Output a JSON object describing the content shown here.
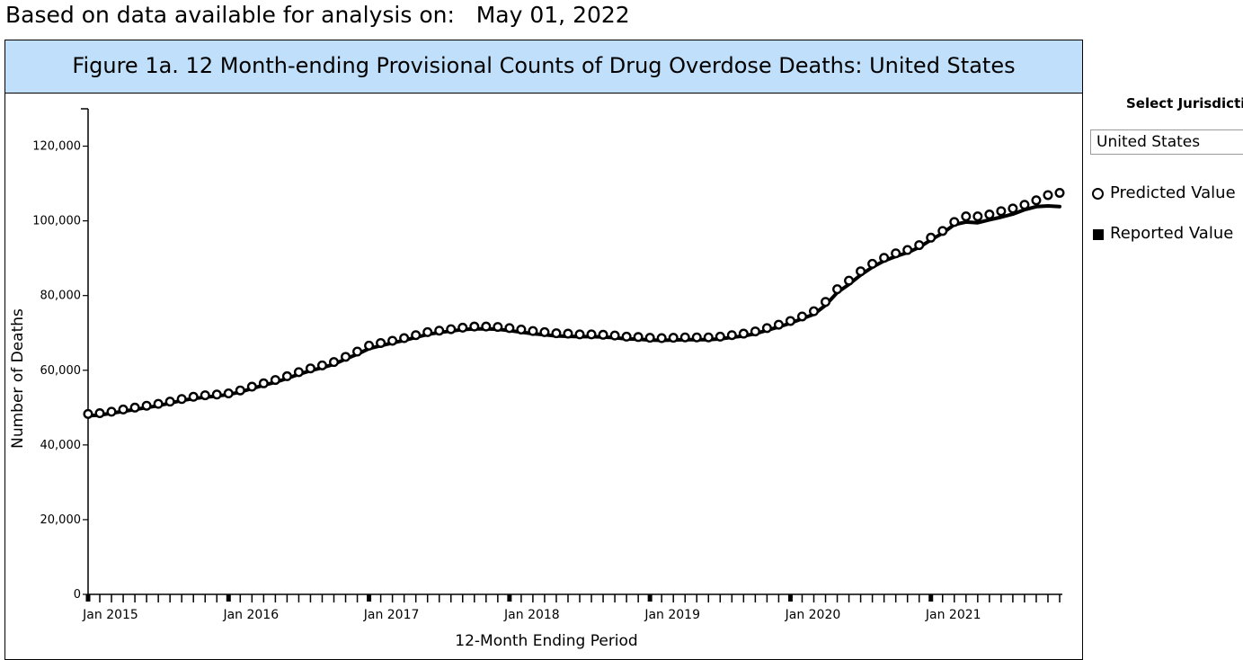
{
  "header": {
    "as_of_label": "Based on data available for analysis on:",
    "as_of_date": "May 01, 2022"
  },
  "figure": {
    "title": "Figure 1a. 12 Month-ending Provisional Counts of Drug Overdose Deaths: United States"
  },
  "controls": {
    "select_label": "Select Jurisdiction",
    "selected_jurisdiction": "United States"
  },
  "legend": {
    "predicted": "Predicted Value",
    "reported": "Reported Value"
  },
  "chart_data": {
    "type": "line",
    "xlabel": "12-Month Ending Period",
    "ylabel": "Number of Deaths",
    "ylim": [
      0,
      130000
    ],
    "yticks": [
      0,
      20000,
      40000,
      60000,
      80000,
      100000,
      120000
    ],
    "ytick_labels": [
      "0",
      "20,000",
      "40,000",
      "60,000",
      "80,000",
      "100,000",
      "120,000"
    ],
    "x_start": "2015-01",
    "x_end": "2021-12",
    "xticks": [
      "Jan 2015",
      "Jan 2016",
      "Jan 2017",
      "Jan 2018",
      "Jan 2019",
      "Jan 2020",
      "Jan 2021"
    ],
    "months": [
      "2015-01",
      "2015-02",
      "2015-03",
      "2015-04",
      "2015-05",
      "2015-06",
      "2015-07",
      "2015-08",
      "2015-09",
      "2015-10",
      "2015-11",
      "2015-12",
      "2016-01",
      "2016-02",
      "2016-03",
      "2016-04",
      "2016-05",
      "2016-06",
      "2016-07",
      "2016-08",
      "2016-09",
      "2016-10",
      "2016-11",
      "2016-12",
      "2017-01",
      "2017-02",
      "2017-03",
      "2017-04",
      "2017-05",
      "2017-06",
      "2017-07",
      "2017-08",
      "2017-09",
      "2017-10",
      "2017-11",
      "2017-12",
      "2018-01",
      "2018-02",
      "2018-03",
      "2018-04",
      "2018-05",
      "2018-06",
      "2018-07",
      "2018-08",
      "2018-09",
      "2018-10",
      "2018-11",
      "2018-12",
      "2019-01",
      "2019-02",
      "2019-03",
      "2019-04",
      "2019-05",
      "2019-06",
      "2019-07",
      "2019-08",
      "2019-09",
      "2019-10",
      "2019-11",
      "2019-12",
      "2020-01",
      "2020-02",
      "2020-03",
      "2020-04",
      "2020-05",
      "2020-06",
      "2020-07",
      "2020-08",
      "2020-09",
      "2020-10",
      "2020-11",
      "2020-12",
      "2021-01",
      "2021-02",
      "2021-03",
      "2021-04",
      "2021-05",
      "2021-06",
      "2021-07",
      "2021-08",
      "2021-09",
      "2021-10",
      "2021-11",
      "2021-12"
    ],
    "series": [
      {
        "name": "Predicted Value",
        "style": "hollow-circles",
        "values": [
          48300,
          48500,
          48900,
          49500,
          50000,
          50500,
          51000,
          51600,
          52300,
          52900,
          53300,
          53500,
          53800,
          54600,
          55600,
          56500,
          57400,
          58400,
          59500,
          60500,
          61300,
          62200,
          63600,
          65000,
          66600,
          67300,
          67900,
          68600,
          69400,
          70200,
          70600,
          71000,
          71400,
          71700,
          71700,
          71600,
          71300,
          70900,
          70500,
          70200,
          69900,
          69800,
          69600,
          69600,
          69500,
          69300,
          69000,
          68900,
          68700,
          68600,
          68700,
          68800,
          68800,
          68800,
          69000,
          69400,
          69800,
          70400,
          71300,
          72200,
          73200,
          74400,
          75800,
          78300,
          81700,
          84000,
          86500,
          88500,
          90100,
          91300,
          92200,
          93500,
          95500,
          97300,
          99700,
          101200,
          101200,
          101700,
          102600,
          103300,
          104300,
          105500,
          106900,
          107500
        ]
      },
      {
        "name": "Reported Value",
        "style": "solid-line",
        "values": [
          47800,
          48000,
          48500,
          49000,
          49500,
          50000,
          50500,
          51200,
          51900,
          52400,
          52800,
          53100,
          53500,
          54200,
          55100,
          56000,
          56800,
          57800,
          58900,
          59900,
          60700,
          61600,
          63000,
          64300,
          65800,
          66600,
          67300,
          68000,
          68800,
          69600,
          70100,
          70500,
          70900,
          71100,
          71100,
          71000,
          70600,
          70200,
          69800,
          69500,
          69200,
          69100,
          69000,
          69000,
          68900,
          68700,
          68400,
          68300,
          68100,
          68000,
          68100,
          68200,
          68200,
          68200,
          68400,
          68800,
          69200,
          69800,
          70700,
          71600,
          72600,
          73800,
          75000,
          77400,
          80800,
          83000,
          85500,
          87600,
          89300,
          90500,
          91500,
          92900,
          94900,
          96700,
          99000,
          99700,
          99500,
          100300,
          101000,
          101800,
          103000,
          103800,
          104000,
          103800
        ]
      }
    ],
    "grid": false,
    "legend_position": "right"
  }
}
